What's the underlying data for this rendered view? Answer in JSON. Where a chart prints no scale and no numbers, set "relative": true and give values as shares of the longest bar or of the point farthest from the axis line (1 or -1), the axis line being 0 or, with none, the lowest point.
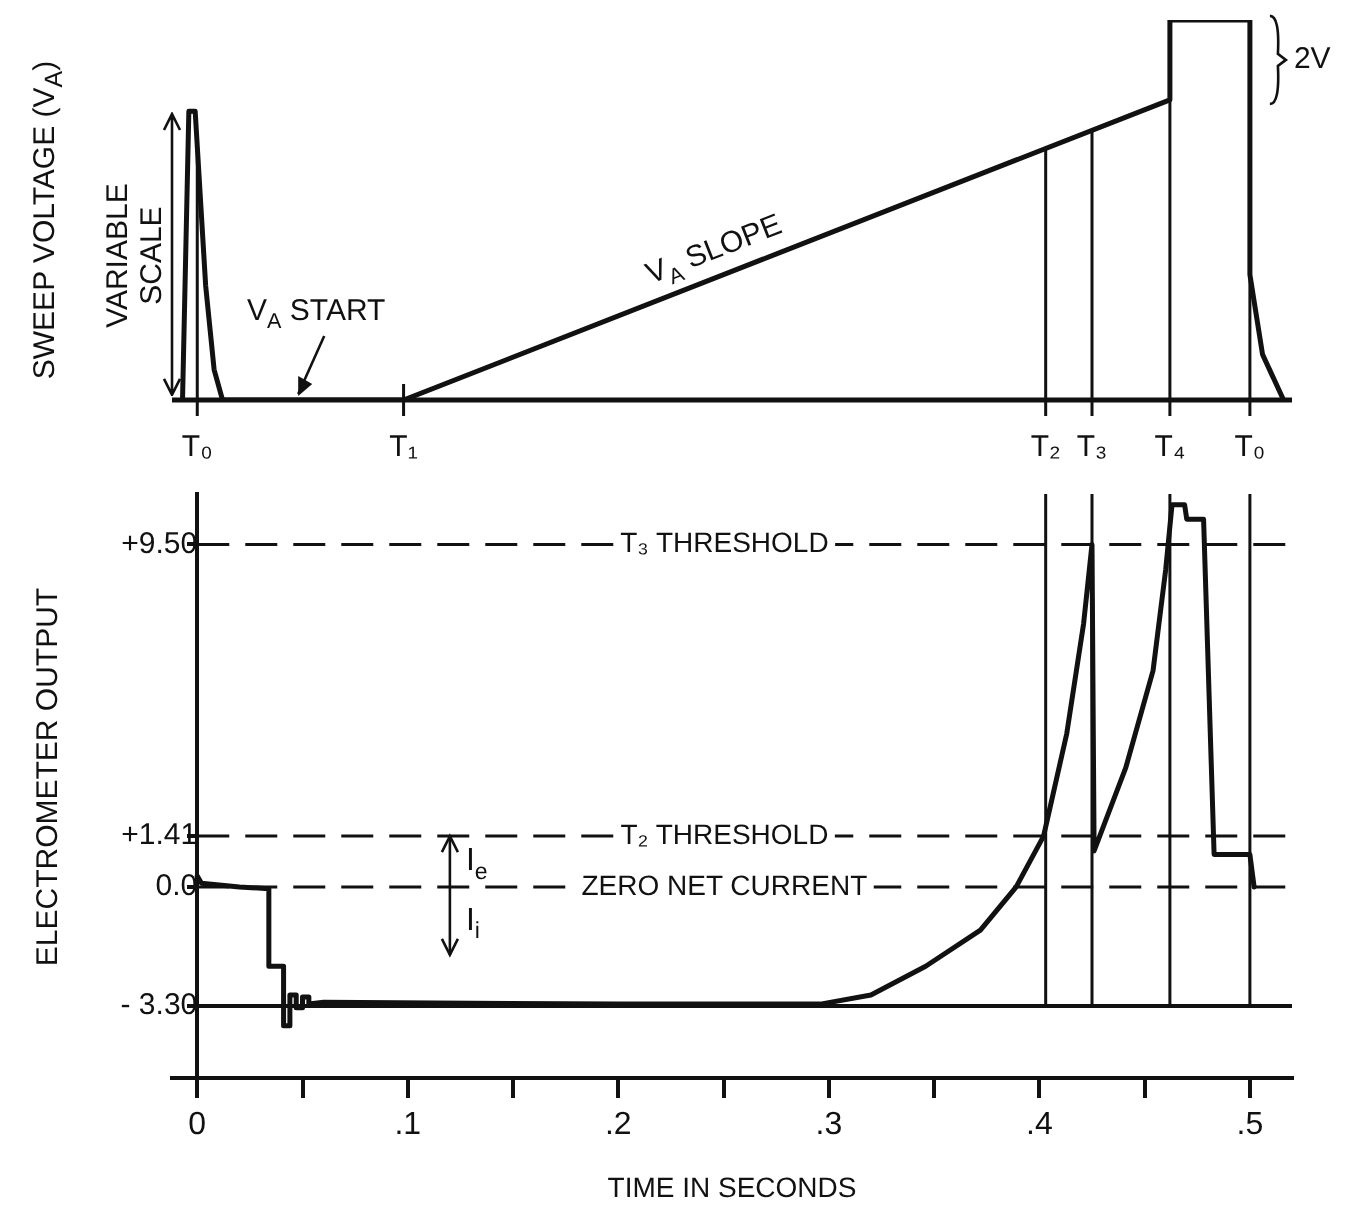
{
  "chart_data": [
    {
      "type": "line",
      "ylabel": "SWEEP VOLTAGE (V$_{A}$)",
      "relative": true,
      "color": "#111111",
      "marker": "none",
      "grid": false,
      "legend": false,
      "tick_labels": false,
      "xlim": [
        -0.012,
        0.52
      ],
      "x": [
        -0.007,
        -0.004,
        -0.001,
        0.004,
        0.008,
        0.012,
        0.098,
        0.462,
        0.462,
        0.5,
        0.5,
        0.506,
        0.516
      ],
      "values": [
        0,
        0.76,
        0.76,
        0.3,
        0.08,
        0,
        0,
        0.79,
        1,
        1,
        0.33,
        0.12,
        0
      ],
      "ref_lines": [
        {
          "axis": "x",
          "value": 0,
          "label": "T₀"
        },
        {
          "axis": "x",
          "value": 0.098,
          "label": "T₁"
        },
        {
          "axis": "x",
          "value": 0.403,
          "label": "T₂"
        },
        {
          "axis": "x",
          "value": 0.425,
          "label": "T₃"
        },
        {
          "axis": "x",
          "value": 0.462,
          "label": "T₄"
        },
        {
          "axis": "x",
          "value": 0.5,
          "label": "T₀"
        }
      ],
      "annotations": [
        {
          "text": "VARIABLE SCALE",
          "x": -0.007,
          "y": 0.76
        },
        {
          "text": "V$_{A}$ START",
          "x": 0.047,
          "y": 0
        },
        {
          "text": "V$_{A}$ SLOPE",
          "x": 0.25,
          "y": 0.33
        },
        {
          "text": "2V",
          "x": 0.5,
          "y": 0.895
        }
      ]
    },
    {
      "type": "line",
      "ylabel": "ELECTROMETER OUTPUT",
      "xlabel": "TIME IN SECONDS",
      "color": "#111111",
      "marker": "none",
      "grid": false,
      "legend": false,
      "xlim": [
        -0.012,
        0.52
      ],
      "ylim": [
        -5.3,
        10.9
      ],
      "xticks": [
        0,
        {
          "value": 0.05,
          "label": null
        },
        {
          "value": 0.1,
          "label": ".1"
        },
        {
          "value": 0.15,
          "label": null
        },
        {
          "value": 0.2,
          "label": ".2"
        },
        {
          "value": 0.25,
          "label": null
        },
        {
          "value": 0.3,
          "label": ".3"
        },
        {
          "value": 0.35,
          "label": null
        },
        {
          "value": 0.4,
          "label": ".4"
        },
        {
          "value": 0.45,
          "label": null
        },
        {
          "value": 0.5,
          "label": ".5"
        }
      ],
      "yticks": [
        {
          "value": -3.3,
          "label": "- 3.30"
        },
        {
          "value": 0,
          "label": "0.0"
        },
        {
          "value": 1.41,
          "label": "+1.41"
        },
        {
          "value": 9.5,
          "label": "+9.50"
        }
      ],
      "x": [
        0,
        0.002,
        0.02,
        0.034,
        0.034,
        0.041,
        0.041,
        0.044,
        0.044,
        0.047,
        0.047,
        0.05,
        0.05,
        0.053,
        0.053,
        0.06,
        0.2,
        0.296,
        0.32,
        0.346,
        0.372,
        0.389,
        0.402,
        0.413,
        0.421,
        0.425,
        0.426,
        0.441,
        0.454,
        0.46,
        0.463,
        0.469,
        0.47,
        0.478,
        0.483,
        0.5,
        0.502
      ],
      "values": [
        0.3,
        0.1,
        0,
        -0.05,
        -2.2,
        -2.2,
        -3.85,
        -3.85,
        -3,
        -3,
        -3.35,
        -3.35,
        -3.05,
        -3.05,
        -3.25,
        -3.2,
        -3.25,
        -3.25,
        -3,
        -2.2,
        -1.2,
        0,
        1.41,
        4.25,
        7.3,
        9.5,
        1,
        3.3,
        6,
        8.8,
        10.6,
        10.6,
        10.2,
        10.2,
        0.9,
        0.9,
        0
      ],
      "ref_lines": [
        {
          "axis": "y",
          "value": 9.5,
          "label": "T₃ THRESHOLD",
          "line_style": "dashed"
        },
        {
          "axis": "y",
          "value": 1.41,
          "label": "T₂ THRESHOLD",
          "line_style": "dashed"
        },
        {
          "axis": "y",
          "value": 0,
          "label": "ZERO NET CURRENT",
          "line_style": "dashed"
        },
        {
          "axis": "y",
          "value": -3.3,
          "line_style": "solid"
        },
        {
          "axis": "x",
          "value": 0.403
        },
        {
          "axis": "x",
          "value": 0.425
        },
        {
          "axis": "x",
          "value": 0.462
        },
        {
          "axis": "x",
          "value": 0.5
        }
      ],
      "annotations": [
        {
          "text": "I$_{e}$",
          "x": 0.12,
          "y": 1.41
        },
        "I$_{i}$"
      ]
    }
  ]
}
